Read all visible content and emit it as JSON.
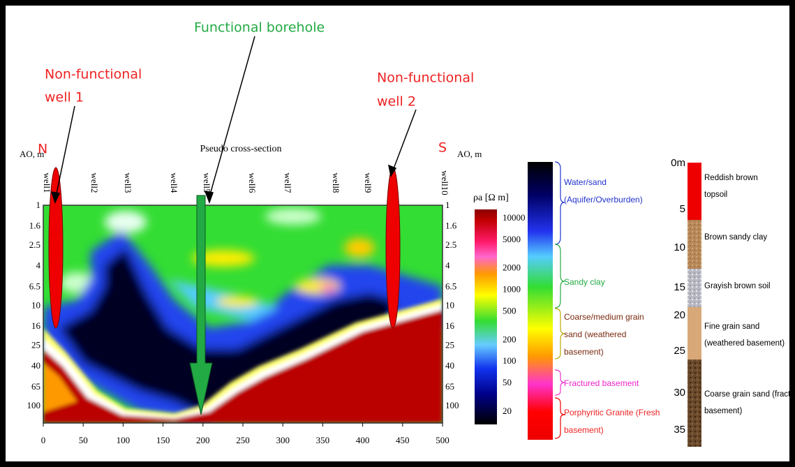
{
  "annotations": {
    "functional_borehole": "Functional borehole",
    "non_functional_well_1": [
      "Non-functional",
      "well 1"
    ],
    "non_functional_well_2": [
      "Non-functional",
      "well  2"
    ]
  },
  "section": {
    "title": "Pseudo cross-section",
    "axis_label_left": "AO, m",
    "axis_label_right": "AO, m",
    "north": "N",
    "south": "S",
    "wells": [
      "well1",
      "well2",
      "well3",
      "well4",
      "well5",
      "well6",
      "well7",
      "well8",
      "well9",
      "well10"
    ],
    "x_ticks": [
      0,
      50,
      100,
      150,
      200,
      250,
      300,
      350,
      400,
      450,
      500
    ],
    "depth_ticks": [
      1,
      1.6,
      2.5,
      4,
      6.5,
      10,
      16,
      25,
      40,
      65,
      100
    ]
  },
  "colorbar": {
    "label": "ρa [Ω m]",
    "ticks": [
      10000,
      5000,
      2000,
      1000,
      500,
      200,
      100,
      50,
      20
    ]
  },
  "legend": {
    "water_sand": [
      "Water/sand",
      "(Aquifer/Overburden)"
    ],
    "sandy_clay": [
      "Sandy clay"
    ],
    "coarse_medium": [
      "Coarse/medium grain",
      "sand (weathered",
      "basement)"
    ],
    "fractured": [
      "Fractured basement"
    ],
    "granite": [
      "Porphyritic Granite (Fresh",
      "basement)"
    ]
  },
  "strat": {
    "depths": [
      "0m",
      "5",
      "10",
      "15",
      "20",
      "25",
      "30",
      "35"
    ],
    "layers": [
      [
        "Reddish brown",
        "topsoil"
      ],
      [
        "Brown sandy clay"
      ],
      [
        "Grayish brown soil"
      ],
      [
        "Fine grain sand",
        "(weathered basement)"
      ],
      [
        "Coarse grain sand (fractured",
        "basement)"
      ]
    ]
  }
}
